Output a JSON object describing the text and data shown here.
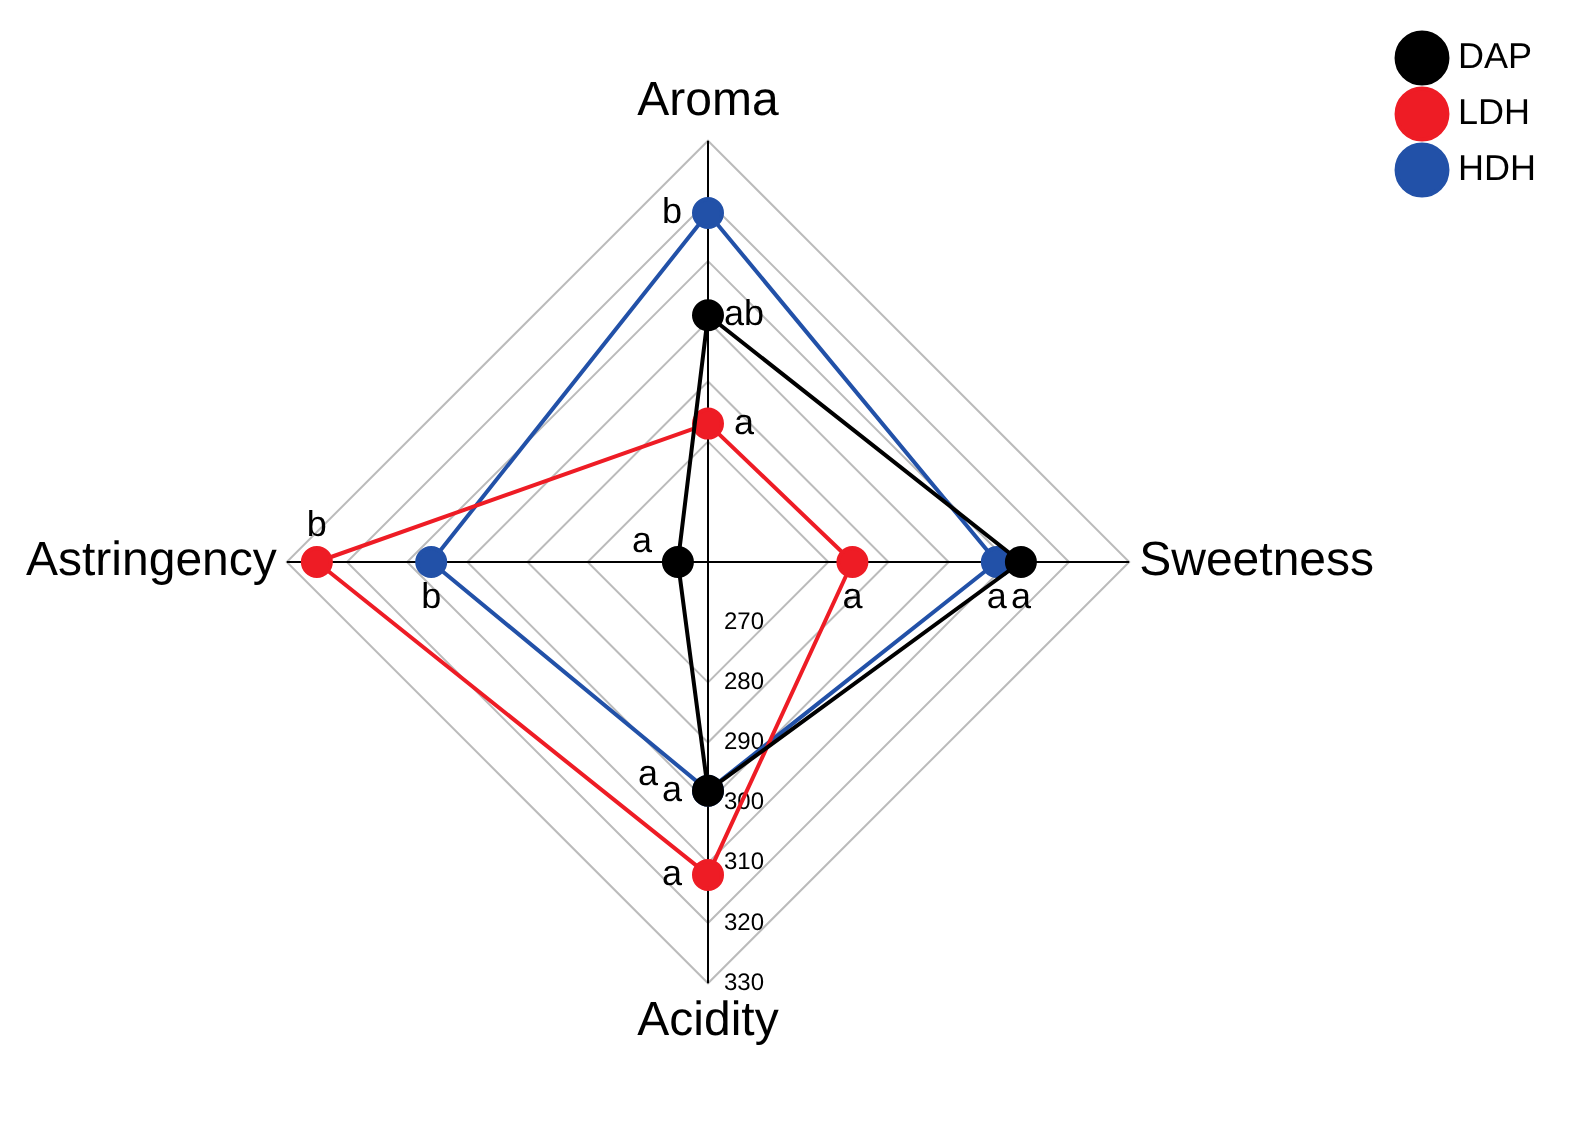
{
  "chart_data": {
    "type": "radar",
    "categories": [
      "Aroma",
      "Sweetness",
      "Acidity",
      "Astringency"
    ],
    "series": [
      {
        "name": "DAP",
        "color": "#000000",
        "values": [
          301,
          312,
          298,
          265
        ],
        "value_labels": [
          "ab",
          "a",
          "a",
          "a"
        ]
      },
      {
        "name": "LDH",
        "color": "#ee1c25",
        "values": [
          283,
          284,
          312,
          325
        ],
        "value_labels": [
          "a",
          "a",
          "a",
          "b"
        ]
      },
      {
        "name": "HDH",
        "color": "#2251a8",
        "values": [
          318,
          308,
          298,
          306
        ],
        "value_labels": [
          "b",
          "a",
          "a",
          "b"
        ]
      }
    ],
    "ylim": [
      260,
      330
    ],
    "yticks": [
      270,
      280,
      290,
      300,
      310,
      320,
      330
    ],
    "grid": true,
    "legend": "top right",
    "marker": "circle",
    "line_style": "solid"
  }
}
